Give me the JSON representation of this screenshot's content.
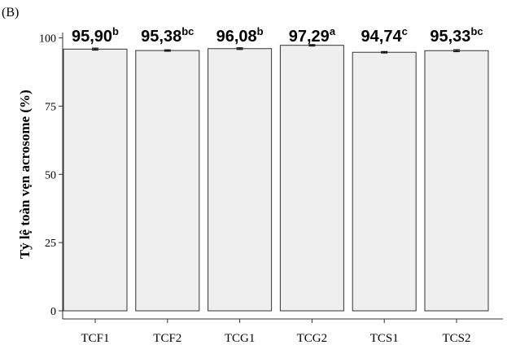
{
  "panel_label": "(B)",
  "colors": {
    "bar_fill": "#efefef",
    "bar_stroke": "#333333",
    "axis": "#333333",
    "errorbar": "#111111"
  },
  "chart_data": {
    "type": "bar",
    "title": "",
    "xlabel": "",
    "ylabel": "Tỷ lệ toàn vẹn acrosome (%)",
    "categories": [
      "TCF1",
      "TCF2",
      "TCG1",
      "TCG2",
      "TCS1",
      "TCS2"
    ],
    "values": [
      95.9,
      95.38,
      96.08,
      97.29,
      94.74,
      95.33
    ],
    "value_labels": [
      "95,90",
      "95,38",
      "96,08",
      "97,29",
      "94,74",
      "95,33"
    ],
    "significance": [
      "b",
      "bc",
      "b",
      "a",
      "c",
      "bc"
    ],
    "errors": [
      0.35,
      0.25,
      0.3,
      0.25,
      0.25,
      0.35
    ],
    "ylim": [
      0,
      100
    ],
    "yticks": [
      0,
      25,
      50,
      75,
      100
    ],
    "grid": false
  }
}
